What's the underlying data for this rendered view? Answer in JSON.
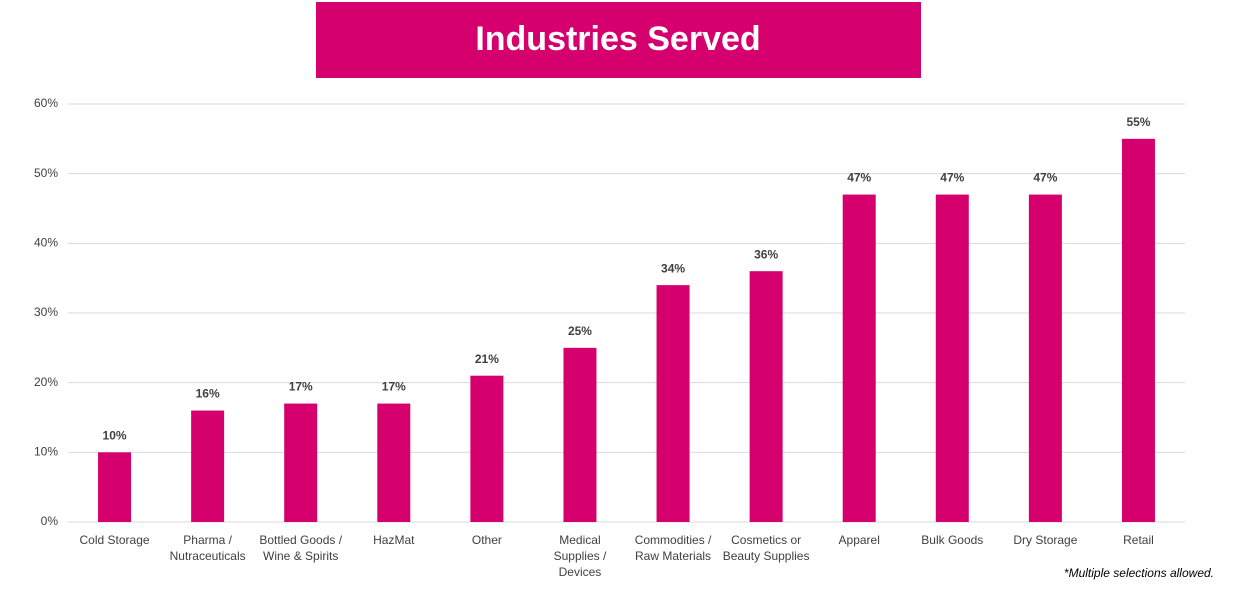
{
  "chart_data": {
    "type": "bar",
    "title": "Industries Served",
    "categories": [
      "Cold Storage",
      "Pharma /\nNutraceuticals",
      "Bottled Goods /\nWine & Spirits",
      "HazMat",
      "Other",
      "Medical\nSupplies /\nDevices",
      "Commodities /\nRaw Materials",
      "Cosmetics or\nBeauty Supplies",
      "Apparel",
      "Bulk Goods",
      "Dry Storage",
      "Retail"
    ],
    "values": [
      10,
      16,
      17,
      17,
      21,
      25,
      34,
      36,
      47,
      47,
      47,
      55
    ],
    "value_labels": [
      "10%",
      "16%",
      "17%",
      "17%",
      "21%",
      "25%",
      "34%",
      "36%",
      "47%",
      "47%",
      "47%",
      "55%"
    ],
    "color": "#d5006d",
    "ylim": [
      0,
      60
    ],
    "yticks": [
      {
        "value": 0,
        "label": "0%"
      },
      {
        "value": 10,
        "label": "10%"
      },
      {
        "value": 20,
        "label": "20%"
      },
      {
        "value": 30,
        "label": "30%"
      },
      {
        "value": 40,
        "label": "40%"
      },
      {
        "value": 50,
        "label": "50%"
      },
      {
        "value": 60,
        "label": "60%"
      }
    ],
    "grid": true,
    "footnote": "*Multiple selections allowed."
  }
}
